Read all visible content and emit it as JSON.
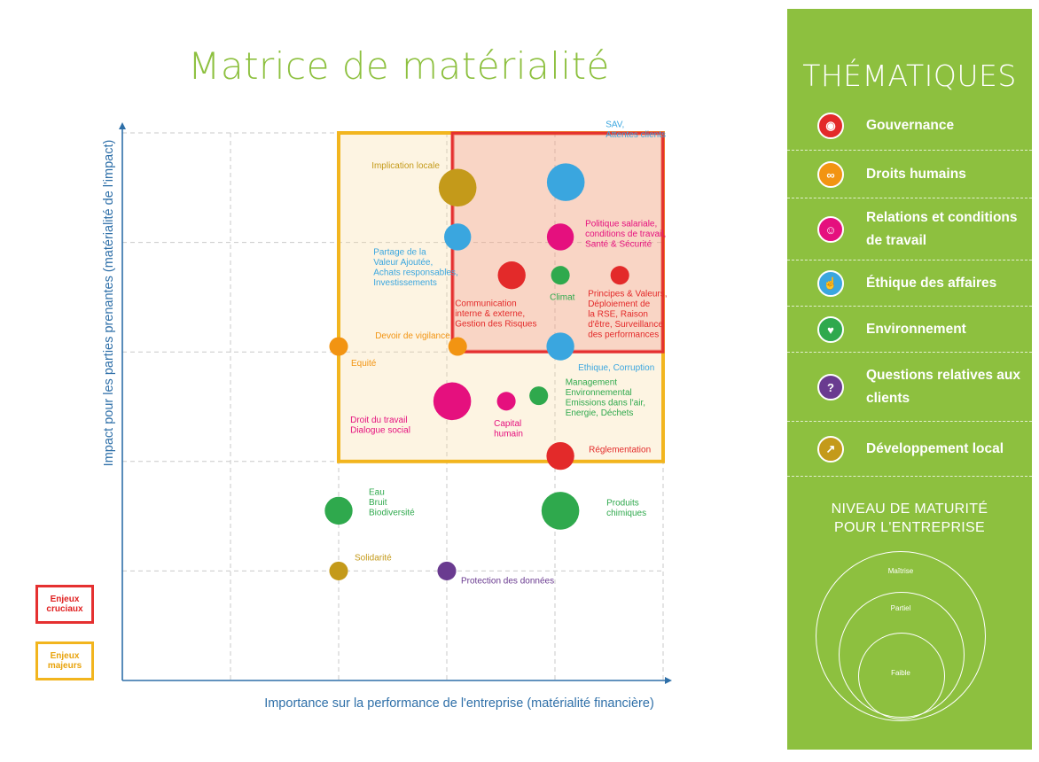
{
  "title": "Matrice de matérialité",
  "colors": {
    "gouvernance": "#e32a2a",
    "droits_humains": "#f29412",
    "relations_travail": "#e5107e",
    "ethique": "#3aa6df",
    "environnement": "#2fa94d",
    "clients": "#6a3b90",
    "developpement_local": "#c49a1a",
    "cruciaux": "#e53030",
    "majeurs": "#f2b51e",
    "panel": "#8dc03f"
  },
  "chart_data": {
    "type": "scatter",
    "xlabel": "Importance sur la performance de l'entreprise (matérialité financière)",
    "ylabel": "Impact pour les parties prenantes (matérialité de l'impact)",
    "xlim": [
      0,
      5
    ],
    "ylim": [
      0,
      5
    ],
    "grid": true,
    "regions": [
      {
        "label": "Enjeux cruciaux",
        "x": [
          3.05,
          5.0
        ],
        "y": [
          3.0,
          5.0
        ],
        "color": "#e53030"
      },
      {
        "label": "Enjeux majeurs",
        "x": [
          2.0,
          5.0
        ],
        "y": [
          2.0,
          5.0
        ],
        "color": "#f2b51e"
      }
    ],
    "points": [
      {
        "label": "Implication locale",
        "theme": "developpement_local",
        "x": 3.1,
        "y": 4.5,
        "size": 3
      },
      {
        "label": "SAV,\nAttentes clients",
        "theme": "ethique",
        "x": 4.1,
        "y": 4.55,
        "size": 3
      },
      {
        "label": "Partage de la\nValeur Ajoutée,\nAchats responsables,\nInvestissements",
        "theme": "ethique",
        "x": 3.1,
        "y": 4.05,
        "size": 1.5
      },
      {
        "label": "Politique salariale,\nconditions de travail,\nSanté & Sécurité",
        "theme": "relations_travail",
        "x": 4.05,
        "y": 4.05,
        "size": 1.5
      },
      {
        "label": "Communication\ninterne & externe,\nGestion des Risques",
        "theme": "gouvernance",
        "x": 3.6,
        "y": 3.7,
        "size": 1.6
      },
      {
        "label": "Climat",
        "theme": "environnement",
        "x": 4.05,
        "y": 3.7,
        "size": 0.7
      },
      {
        "label": "Principes & Valeurs,\nDéploiement de\nla RSE,  Raison\nd'être, Surveillance\ndes performances",
        "theme": "gouvernance",
        "x": 4.6,
        "y": 3.7,
        "size": 0.7
      },
      {
        "label": "Devoir de vigilance",
        "theme": "droits_humains",
        "x": 3.1,
        "y": 3.05,
        "size": 0.7
      },
      {
        "label": "Equité",
        "theme": "droits_humains",
        "x": 2.0,
        "y": 3.05,
        "size": 0.7
      },
      {
        "label": "Ethique, Corruption",
        "theme": "ethique",
        "x": 4.05,
        "y": 3.05,
        "size": 1.6
      },
      {
        "label": "Droit du travail\nDialogue social",
        "theme": "relations_travail",
        "x": 3.05,
        "y": 2.55,
        "size": 3
      },
      {
        "label": "Capital\nhumain",
        "theme": "relations_travail",
        "x": 3.55,
        "y": 2.55,
        "size": 0.7
      },
      {
        "label": "Management\nEnvironnemental\nEmissions dans l'air,\nEnergie, Déchets",
        "theme": "environnement",
        "x": 3.85,
        "y": 2.6,
        "size": 0.7
      },
      {
        "label": "Réglementation",
        "theme": "gouvernance",
        "x": 4.05,
        "y": 2.05,
        "size": 1.6
      },
      {
        "label": "Eau\nBruit\nBiodiversité",
        "theme": "environnement",
        "x": 2.0,
        "y": 1.55,
        "size": 1.6
      },
      {
        "label": "Produits\nchimiques",
        "theme": "environnement",
        "x": 4.05,
        "y": 1.55,
        "size": 3
      },
      {
        "label": "Solidarité",
        "theme": "developpement_local",
        "x": 2.0,
        "y": 1.0,
        "size": 0.7
      },
      {
        "label": "Protection des données",
        "theme": "clients",
        "x": 3.0,
        "y": 1.0,
        "size": 0.7
      }
    ]
  },
  "legend": {
    "cruciaux": "Enjeux\ncruciaux",
    "majeurs": "Enjeux\nmajeurs"
  },
  "panel": {
    "title": "THÉMATIQUES",
    "themes": [
      {
        "label": "Gouvernance",
        "icon": "people-group-icon",
        "color": "#e32a2a"
      },
      {
        "label": "Droits humains",
        "icon": "people-pair-icon",
        "color": "#f29412"
      },
      {
        "label": "Relations et conditions de travail",
        "icon": "family-icon",
        "color": "#e5107e"
      },
      {
        "label": "Éthique des affaires",
        "icon": "thumbs-up-icon",
        "color": "#3aa6df"
      },
      {
        "label": "Environnement",
        "icon": "heart-hands-icon",
        "color": "#2fa94d"
      },
      {
        "label": "Questions relatives aux clients",
        "icon": "question-bubble-icon",
        "color": "#6a3b90"
      },
      {
        "label": "Développement local",
        "icon": "trend-chart-icon",
        "color": "#c49a1a"
      }
    ],
    "maturity_title": "NIVEAU DE MATURITÉ\nPOUR L'ENTREPRISE",
    "maturity_levels": [
      "Maîtrise",
      "Partiel",
      "Faible"
    ]
  }
}
